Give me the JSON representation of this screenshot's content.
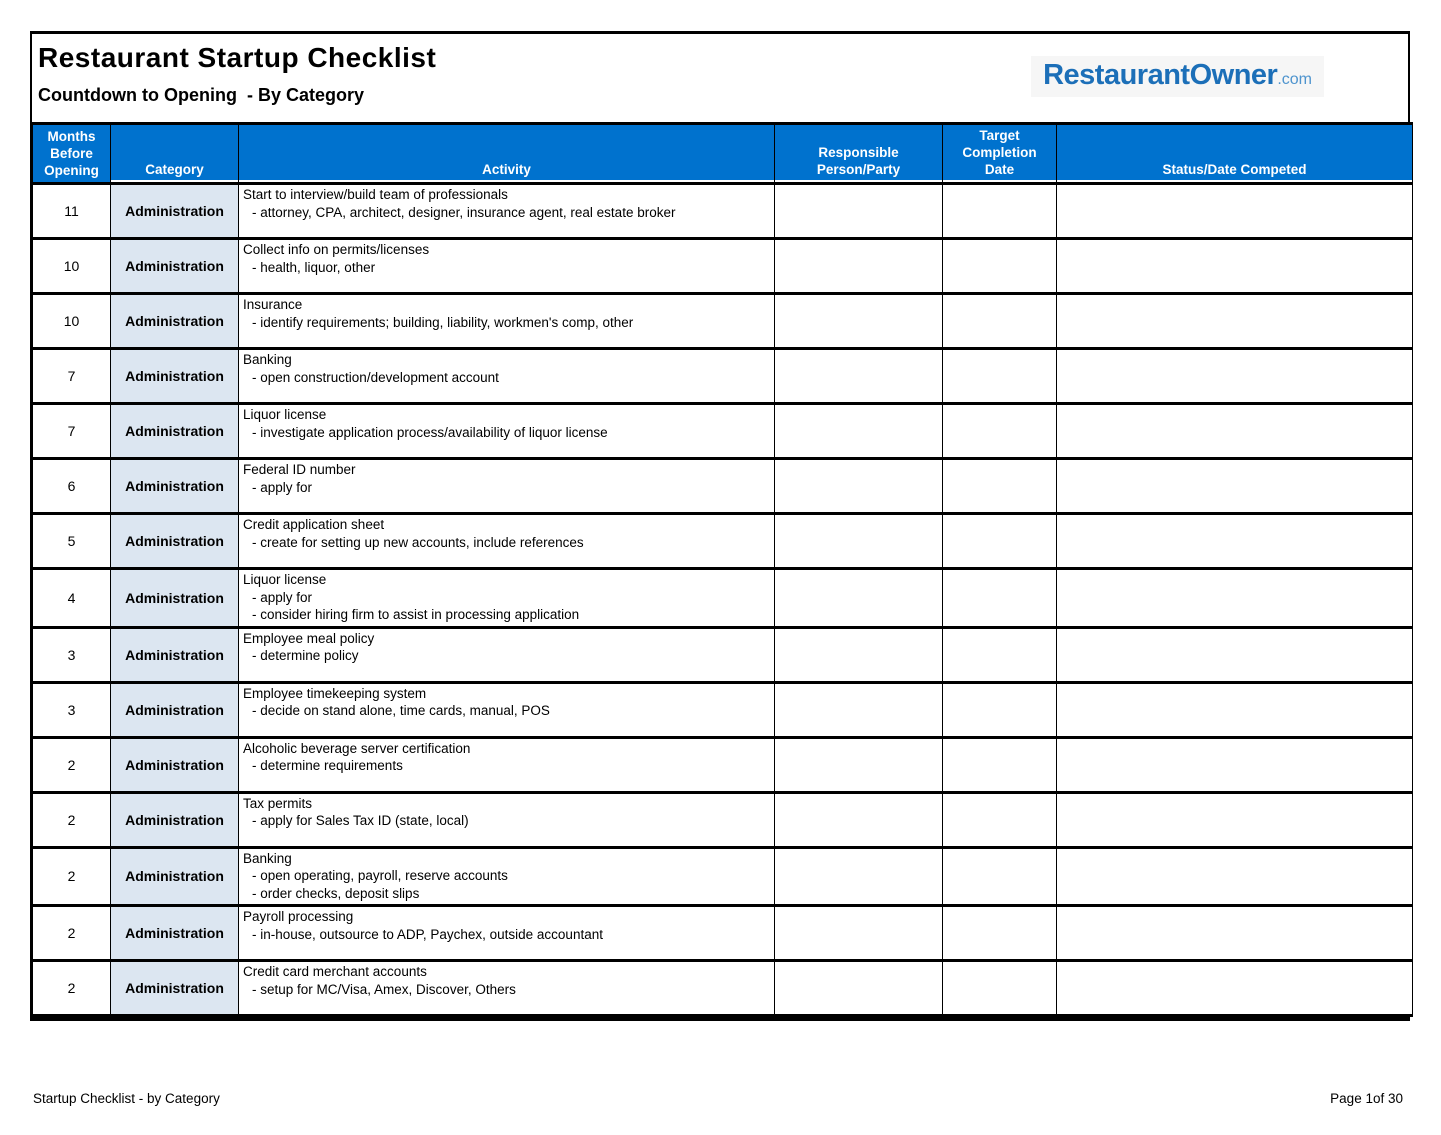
{
  "header": {
    "title": "Restaurant Startup Checklist",
    "subtitle": "Countdown to Opening  - By Category",
    "logo_main": "RestaurantOwner",
    "logo_tld": ".com"
  },
  "colors": {
    "header_blue": "#0072CE",
    "category_bg": "#DCE6F1",
    "logo_blue": "#1C6FB8",
    "logo_tld_blue": "#4E94CE"
  },
  "table": {
    "columns": [
      "Months\nBefore\nOpening",
      "Category",
      "Activity",
      "Responsible\nPerson/Party",
      "Target\nCompletion\nDate",
      "Status/Date Competed"
    ],
    "rows": [
      {
        "months": "11",
        "category": "Administration",
        "activity": "Start to interview/build team of professionals",
        "details": [
          "- attorney, CPA, architect, designer, insurance agent, real estate broker"
        ],
        "responsible": "",
        "target_date": "",
        "status": ""
      },
      {
        "months": "10",
        "category": "Administration",
        "activity": "Collect info on permits/licenses",
        "details": [
          "- health, liquor, other"
        ],
        "responsible": "",
        "target_date": "",
        "status": ""
      },
      {
        "months": "10",
        "category": "Administration",
        "activity": "Insurance",
        "details": [
          "- identify requirements; building, liability, workmen's comp, other"
        ],
        "responsible": "",
        "target_date": "",
        "status": ""
      },
      {
        "months": "7",
        "category": "Administration",
        "activity": "Banking",
        "details": [
          "- open construction/development account"
        ],
        "responsible": "",
        "target_date": "",
        "status": ""
      },
      {
        "months": "7",
        "category": "Administration",
        "activity": "Liquor license",
        "details": [
          "- investigate application process/availability of liquor license"
        ],
        "responsible": "",
        "target_date": "",
        "status": ""
      },
      {
        "months": "6",
        "category": "Administration",
        "activity": "Federal ID number",
        "details": [
          "- apply for"
        ],
        "responsible": "",
        "target_date": "",
        "status": ""
      },
      {
        "months": "5",
        "category": "Administration",
        "activity": "Credit application sheet",
        "details": [
          "- create for setting up new accounts, include references"
        ],
        "responsible": "",
        "target_date": "",
        "status": ""
      },
      {
        "months": "4",
        "category": "Administration",
        "activity": "Liquor license",
        "details": [
          "- apply for",
          "- consider hiring firm to assist in processing application"
        ],
        "responsible": "",
        "target_date": "",
        "status": ""
      },
      {
        "months": "3",
        "category": "Administration",
        "activity": "Employee meal policy",
        "details": [
          "- determine policy"
        ],
        "responsible": "",
        "target_date": "",
        "status": ""
      },
      {
        "months": "3",
        "category": "Administration",
        "activity": "Employee timekeeping system",
        "details": [
          "- decide on stand alone, time cards, manual, POS"
        ],
        "responsible": "",
        "target_date": "",
        "status": ""
      },
      {
        "months": "2",
        "category": "Administration",
        "activity": "Alcoholic beverage server certification",
        "details": [
          "- determine requirements"
        ],
        "responsible": "",
        "target_date": "",
        "status": ""
      },
      {
        "months": "2",
        "category": "Administration",
        "activity": "Tax permits",
        "details": [
          "- apply for Sales Tax ID (state, local)"
        ],
        "responsible": "",
        "target_date": "",
        "status": ""
      },
      {
        "months": "2",
        "category": "Administration",
        "activity": "Banking",
        "details": [
          "- open operating, payroll, reserve accounts",
          "- order checks, deposit slips"
        ],
        "responsible": "",
        "target_date": "",
        "status": ""
      },
      {
        "months": "2",
        "category": "Administration",
        "activity": "Payroll processing",
        "details": [
          "- in-house, outsource to ADP, Paychex, outside accountant"
        ],
        "responsible": "",
        "target_date": "",
        "status": ""
      },
      {
        "months": "2",
        "category": "Administration",
        "activity": "Credit card merchant accounts",
        "details": [
          "- setup for MC/Visa, Amex, Discover, Others"
        ],
        "responsible": "",
        "target_date": "",
        "status": ""
      }
    ]
  },
  "footer": {
    "left": "Startup Checklist - by Category",
    "right": "Page 1of 30"
  }
}
